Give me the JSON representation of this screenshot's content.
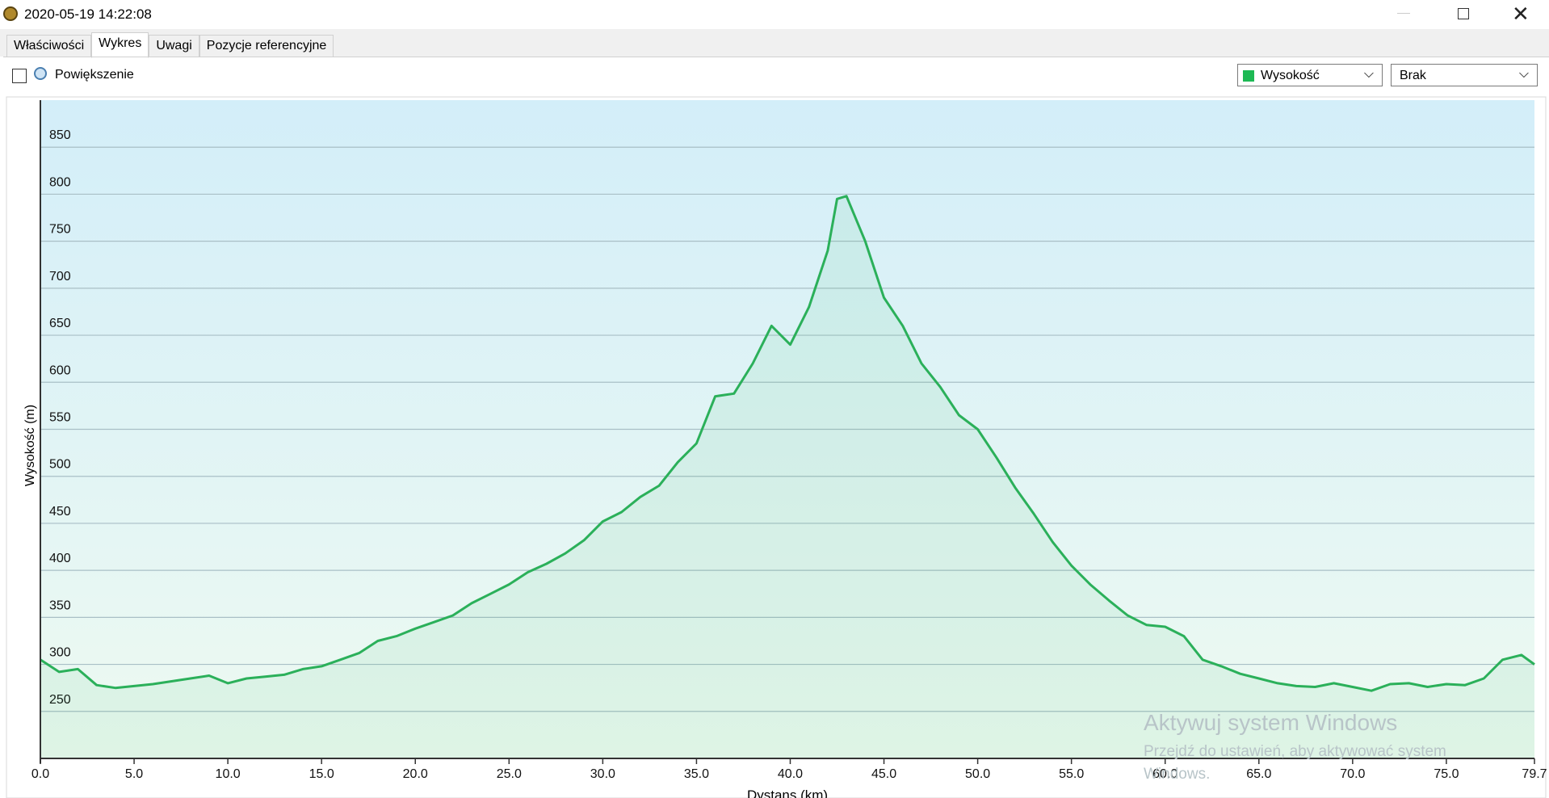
{
  "window": {
    "title": "2020-05-19 14:22:08",
    "tabs": [
      "Właściwości",
      "Wykres",
      "Uwagi",
      "Pozycje referencyjne"
    ],
    "zoom_label": "Powiększenie",
    "select1": "Wysokość",
    "select2": "Brak",
    "watermark": [
      "Aktywuj system Windows",
      "Przejdź do ustawień, aby aktywować system Windows."
    ]
  },
  "chart_data": {
    "type": "line",
    "x_label": "Dystans (km)",
    "y_label": "Wysokość (m)",
    "xlim": [
      0,
      79.7
    ],
    "ylim": [
      200,
      900
    ],
    "xticks": [
      {
        "value": 0,
        "label": "0.0"
      },
      {
        "value": 5,
        "label": "5.0"
      },
      {
        "value": 10,
        "label": "10.0"
      },
      {
        "value": 15,
        "label": "15.0"
      },
      {
        "value": 20,
        "label": "20.0"
      },
      {
        "value": 25,
        "label": "25.0"
      },
      {
        "value": 30,
        "label": "30.0"
      },
      {
        "value": 35,
        "label": "35.0"
      },
      {
        "value": 40,
        "label": "40.0"
      },
      {
        "value": 45,
        "label": "45.0"
      },
      {
        "value": 50,
        "label": "50.0"
      },
      {
        "value": 55,
        "label": "55.0"
      },
      {
        "value": 60,
        "label": "60.0"
      },
      {
        "value": 65,
        "label": "65.0"
      },
      {
        "value": 70,
        "label": "70.0"
      },
      {
        "value": 75,
        "label": "75.0"
      },
      79.7
    ],
    "yticks": [
      250,
      300,
      350,
      400,
      450,
      500,
      550,
      600,
      650,
      700,
      750,
      800,
      850
    ],
    "grid": true,
    "series": [
      {
        "name": "Wysokość",
        "color": "#2bb05a",
        "x": [
          0,
          1,
          2,
          3,
          4,
          5,
          6,
          7,
          8,
          9,
          10,
          11,
          12,
          13,
          14,
          15,
          16,
          17,
          18,
          19,
          20,
          21,
          22,
          23,
          24,
          25,
          26,
          27,
          28,
          29,
          30,
          31,
          32,
          33,
          34,
          35,
          36,
          37,
          38,
          39,
          40,
          41,
          42,
          42.5,
          43,
          44,
          45,
          46,
          47,
          48,
          49,
          50,
          51,
          52,
          53,
          54,
          55,
          56,
          57,
          58,
          59,
          60,
          61,
          62,
          63,
          64,
          65,
          66,
          67,
          68,
          69,
          70,
          71,
          72,
          73,
          74,
          75,
          76,
          77,
          78,
          79,
          79.7
        ],
        "values": [
          305,
          292,
          295,
          278,
          275,
          277,
          279,
          282,
          285,
          288,
          280,
          285,
          287,
          289,
          295,
          298,
          305,
          312,
          325,
          330,
          338,
          345,
          352,
          365,
          375,
          385,
          398,
          407,
          418,
          432,
          452,
          462,
          478,
          490,
          515,
          535,
          585,
          588,
          620,
          660,
          640,
          680,
          740,
          795,
          798,
          750,
          690,
          660,
          620,
          595,
          565,
          550,
          520,
          488,
          460,
          430,
          405,
          385,
          368,
          352,
          342,
          340,
          330,
          305,
          298,
          290,
          285,
          280,
          277,
          276,
          280,
          276,
          272,
          279,
          280,
          276,
          279,
          278,
          285,
          305,
          310,
          300
        ]
      }
    ]
  }
}
